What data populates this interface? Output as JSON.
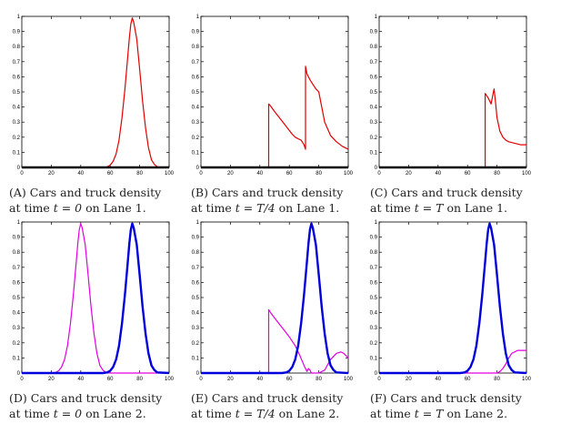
{
  "colors": {
    "cars": "#e00000",
    "car_lane2": "#e000e0",
    "truck": "#0000dd",
    "black": "#000000"
  },
  "chart_data": [
    {
      "type": "line",
      "panel": "A",
      "xlim": [
        0,
        100
      ],
      "ylim": [
        0,
        1
      ],
      "xticks": [
        "0",
        "20",
        "40",
        "60",
        "80",
        "100"
      ],
      "yticks": [
        "0",
        "0.1",
        "0.2",
        "0.3",
        "0.4",
        "0.5",
        "0.6",
        "0.7",
        "0.8",
        "0.9",
        "1"
      ],
      "caption": {
        "label": "(A)",
        "line1": "Cars and truck density",
        "pre": "at time ",
        "math": "t = 0",
        "post": " on Lane 1."
      },
      "series": [
        {
          "name": "cars",
          "color": "#e00000",
          "x": [
            0,
            55,
            58,
            60,
            62,
            64,
            66,
            68,
            70,
            72,
            73,
            74,
            75,
            76,
            78,
            80,
            82,
            84,
            86,
            88,
            90,
            92,
            100
          ],
          "y": [
            0,
            0,
            0.004,
            0.015,
            0.04,
            0.09,
            0.18,
            0.33,
            0.52,
            0.74,
            0.86,
            0.95,
            0.99,
            0.96,
            0.85,
            0.65,
            0.44,
            0.26,
            0.13,
            0.05,
            0.02,
            0.004,
            0
          ]
        },
        {
          "name": "truck",
          "color": "#000000",
          "x": [
            0,
            100
          ],
          "y": [
            0,
            0
          ]
        }
      ]
    },
    {
      "type": "line",
      "panel": "B",
      "xlim": [
        0,
        100
      ],
      "ylim": [
        0,
        1
      ],
      "xticks": [
        "0",
        "20",
        "40",
        "60",
        "80",
        "100"
      ],
      "yticks": [
        "0",
        "0.1",
        "0.2",
        "0.3",
        "0.4",
        "0.5",
        "0.6",
        "0.7",
        "0.8",
        "0.9",
        "1"
      ],
      "caption": {
        "label": "(B)",
        "line1": "Cars and truck density",
        "pre": "at time ",
        "math": "t = T/4",
        "post": " on Lane 1."
      },
      "series": [
        {
          "name": "cars",
          "color": "#e00000",
          "x": [
            0,
            46,
            46,
            47,
            50,
            54,
            58,
            62,
            64,
            66,
            68,
            70,
            71,
            71,
            72,
            74,
            76,
            78,
            80,
            84,
            88,
            92,
            96,
            100
          ],
          "y": [
            0,
            0,
            0.42,
            0.41,
            0.37,
            0.32,
            0.27,
            0.22,
            0.2,
            0.19,
            0.18,
            0.15,
            0.12,
            0.67,
            0.62,
            0.58,
            0.55,
            0.52,
            0.5,
            0.3,
            0.21,
            0.17,
            0.14,
            0.12
          ]
        },
        {
          "name": "truck",
          "color": "#000000",
          "x": [
            0,
            100
          ],
          "y": [
            0,
            0
          ]
        }
      ]
    },
    {
      "type": "line",
      "panel": "C",
      "xlim": [
        0,
        100
      ],
      "ylim": [
        0,
        1
      ],
      "xticks": [
        "0",
        "20",
        "40",
        "60",
        "80",
        "100"
      ],
      "yticks": [
        "0",
        "0.1",
        "0.2",
        "0.3",
        "0.4",
        "0.5",
        "0.6",
        "0.7",
        "0.8",
        "0.9",
        "1"
      ],
      "caption": {
        "label": "(C)",
        "line1": "Cars and truck density",
        "pre": "at time ",
        "math": "t = T",
        "post": " on Lane 1."
      },
      "series": [
        {
          "name": "cars",
          "color": "#e00000",
          "x": [
            0,
            72,
            72,
            74,
            76,
            77,
            78,
            79,
            80,
            82,
            84,
            86,
            88,
            92,
            96,
            100
          ],
          "y": [
            0,
            0,
            0.49,
            0.46,
            0.42,
            0.47,
            0.52,
            0.43,
            0.33,
            0.24,
            0.2,
            0.18,
            0.17,
            0.16,
            0.15,
            0.15
          ]
        },
        {
          "name": "truck",
          "color": "#000000",
          "x": [
            0,
            100
          ],
          "y": [
            0,
            0
          ]
        }
      ]
    },
    {
      "type": "line",
      "panel": "D",
      "xlim": [
        0,
        100
      ],
      "ylim": [
        0,
        1
      ],
      "xticks": [
        "0",
        "20",
        "40",
        "60",
        "80",
        "100"
      ],
      "yticks": [
        "0",
        "0.1",
        "0.2",
        "0.3",
        "0.4",
        "0.5",
        "0.6",
        "0.7",
        "0.8",
        "0.9",
        "1"
      ],
      "caption": {
        "label": "(D)",
        "line1": "Cars and truck density",
        "pre": "at time ",
        "math": "t = 0",
        "post": " on Lane 2."
      },
      "series": [
        {
          "name": "cars",
          "color": "#e000e0",
          "x": [
            0,
            20,
            23,
            25,
            27,
            29,
            31,
            33,
            35,
            37,
            38,
            39,
            40,
            41,
            43,
            45,
            47,
            49,
            51,
            53,
            55,
            57,
            60,
            100
          ],
          "y": [
            0,
            0,
            0.004,
            0.015,
            0.04,
            0.09,
            0.18,
            0.33,
            0.52,
            0.74,
            0.86,
            0.95,
            0.99,
            0.96,
            0.85,
            0.65,
            0.44,
            0.26,
            0.13,
            0.05,
            0.02,
            0.004,
            0,
            0
          ]
        },
        {
          "name": "truck",
          "color": "#0000dd",
          "x": [
            0,
            55,
            58,
            60,
            62,
            64,
            66,
            68,
            70,
            72,
            73,
            74,
            75,
            76,
            78,
            80,
            82,
            84,
            86,
            88,
            90,
            92,
            100
          ],
          "y": [
            0,
            0,
            0.004,
            0.015,
            0.04,
            0.09,
            0.18,
            0.33,
            0.52,
            0.74,
            0.86,
            0.95,
            0.99,
            0.96,
            0.85,
            0.65,
            0.44,
            0.26,
            0.13,
            0.05,
            0.02,
            0.004,
            0
          ]
        }
      ]
    },
    {
      "type": "line",
      "panel": "E",
      "xlim": [
        0,
        100
      ],
      "ylim": [
        0,
        1
      ],
      "xticks": [
        "0",
        "20",
        "40",
        "60",
        "80",
        "100"
      ],
      "yticks": [
        "0",
        "0.1",
        "0.2",
        "0.3",
        "0.4",
        "0.5",
        "0.6",
        "0.7",
        "0.8",
        "0.9",
        "1"
      ],
      "caption": {
        "label": "(E)",
        "line1": "Cars and truck density",
        "pre": "at time ",
        "math": "t = T/4",
        "post": " on Lane 2."
      },
      "series": [
        {
          "name": "cars",
          "color": "#e000e0",
          "x": [
            0,
            46,
            46,
            48,
            52,
            56,
            60,
            64,
            67,
            70,
            72,
            73,
            74,
            75,
            76,
            78,
            80,
            84,
            88,
            92,
            95,
            97,
            100
          ],
          "y": [
            0,
            0,
            0.42,
            0.39,
            0.34,
            0.29,
            0.24,
            0.18,
            0.12,
            0.05,
            0.01,
            0.03,
            0.02,
            0,
            0,
            0,
            0,
            0.02,
            0.09,
            0.13,
            0.14,
            0.13,
            0.1
          ]
        },
        {
          "name": "truck",
          "color": "#0000dd",
          "x": [
            0,
            55,
            58,
            60,
            62,
            64,
            66,
            68,
            70,
            72,
            73,
            74,
            75,
            76,
            78,
            80,
            82,
            84,
            86,
            88,
            90,
            92,
            100
          ],
          "y": [
            0,
            0,
            0.004,
            0.015,
            0.04,
            0.09,
            0.18,
            0.33,
            0.52,
            0.74,
            0.86,
            0.95,
            0.99,
            0.96,
            0.85,
            0.65,
            0.44,
            0.26,
            0.13,
            0.05,
            0.02,
            0.004,
            0
          ]
        }
      ]
    },
    {
      "type": "line",
      "panel": "F",
      "xlim": [
        0,
        100
      ],
      "ylim": [
        0,
        1
      ],
      "xticks": [
        "0",
        "20",
        "40",
        "60",
        "80",
        "100"
      ],
      "yticks": [
        "0",
        "0.1",
        "0.2",
        "0.3",
        "0.4",
        "0.5",
        "0.6",
        "0.7",
        "0.8",
        "0.9",
        "1"
      ],
      "caption": {
        "label": "(F)",
        "line1": "Cars and truck density",
        "pre": "at time ",
        "math": "t = T",
        "post": " on Lane 2."
      },
      "series": [
        {
          "name": "cars",
          "color": "#e000e0",
          "x": [
            0,
            80,
            82,
            84,
            86,
            88,
            90,
            92,
            94,
            96,
            100
          ],
          "y": [
            0,
            0,
            0.01,
            0.03,
            0.06,
            0.1,
            0.13,
            0.14,
            0.15,
            0.15,
            0.15
          ]
        },
        {
          "name": "truck",
          "color": "#0000dd",
          "x": [
            0,
            55,
            58,
            60,
            62,
            64,
            66,
            68,
            70,
            72,
            73,
            74,
            75,
            76,
            78,
            80,
            82,
            84,
            86,
            88,
            90,
            92,
            100
          ],
          "y": [
            0,
            0,
            0.004,
            0.015,
            0.04,
            0.09,
            0.18,
            0.33,
            0.52,
            0.74,
            0.86,
            0.95,
            0.99,
            0.96,
            0.85,
            0.65,
            0.44,
            0.26,
            0.13,
            0.05,
            0.02,
            0.004,
            0
          ]
        }
      ]
    }
  ]
}
